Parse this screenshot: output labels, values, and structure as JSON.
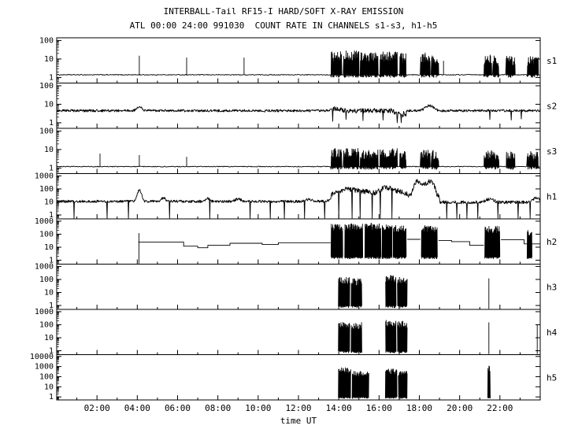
{
  "chart_data": {
    "type": "line",
    "title": "INTERBALL-Tail RF15-I HARD/SOFT X-RAY EMISSION",
    "subtitle": "ATL 00:00 24:00 991030  COUNT RATE IN CHANNELS s1-s3, h1-h5",
    "xlabel": "time UT",
    "x_range_hours": [
      0,
      24
    ],
    "x_major_ticks": [
      {
        "h": 2,
        "label": "02:00"
      },
      {
        "h": 4,
        "label": "04:00"
      },
      {
        "h": 6,
        "label": "06:00"
      },
      {
        "h": 8,
        "label": "08:00"
      },
      {
        "h": 10,
        "label": "10:00"
      },
      {
        "h": 12,
        "label": "12:00"
      },
      {
        "h": 14,
        "label": "14:00"
      },
      {
        "h": 16,
        "label": "16:00"
      },
      {
        "h": 18,
        "label": "18:00"
      },
      {
        "h": 20,
        "label": "20:00"
      },
      {
        "h": 22,
        "label": "22:00"
      }
    ],
    "panels": [
      {
        "id": "s1",
        "label": "s1",
        "kind": "burst",
        "ymin": 0.5,
        "ymax": 140,
        "yticks": [
          [
            100,
            "100"
          ],
          [
            10,
            "10"
          ],
          [
            1,
            "1"
          ]
        ],
        "baseline": 1.4,
        "baseline_noise": 0.05,
        "bursts": [
          [
            13.6,
            14.15,
            1.2,
            25
          ],
          [
            14.22,
            15.0,
            1.2,
            28
          ],
          [
            15.06,
            15.95,
            1.2,
            22
          ],
          [
            16.02,
            16.9,
            1.2,
            25
          ],
          [
            17.0,
            17.35,
            1.2,
            20
          ],
          [
            18.05,
            18.55,
            1.2,
            22
          ],
          [
            18.6,
            18.95,
            1.2,
            18
          ],
          [
            21.2,
            21.6,
            1.2,
            18
          ],
          [
            21.65,
            21.95,
            1.2,
            15
          ],
          [
            22.3,
            22.75,
            1.2,
            15
          ],
          [
            23.35,
            23.9,
            1.2,
            15
          ]
        ],
        "spikes": [
          [
            4.1,
            15
          ],
          [
            6.45,
            12
          ],
          [
            9.3,
            12
          ],
          [
            19.2,
            8
          ]
        ]
      },
      {
        "id": "s2",
        "label": "s2",
        "kind": "continuous",
        "ymin": 0.5,
        "ymax": 140,
        "yticks": [
          [
            100,
            "100"
          ],
          [
            10,
            "10"
          ],
          [
            1,
            "1"
          ]
        ],
        "base": 4.5,
        "noise": 0.1,
        "bumps": [
          [
            4.1,
            0.15,
            1.6
          ],
          [
            13.9,
            0.3,
            1.3
          ],
          [
            18.5,
            0.25,
            1.9
          ]
        ],
        "regions": [
          [
            13.6,
            17.35,
            1.0,
            2.0
          ],
          [
            16.75,
            17.35,
            0.65,
            2.5
          ]
        ],
        "drops": [
          [
            13.7,
            1.2
          ],
          [
            14.35,
            1.5
          ],
          [
            15.2,
            1.3
          ],
          [
            16.2,
            1.4
          ],
          [
            16.9,
            1.0
          ],
          [
            17.1,
            1.0
          ],
          [
            21.5,
            1.5
          ],
          [
            22.55,
            1.4
          ],
          [
            23.05,
            1.6
          ]
        ]
      },
      {
        "id": "s3",
        "label": "s3",
        "kind": "burst",
        "ymin": 0.5,
        "ymax": 140,
        "yticks": [
          [
            100,
            "100"
          ],
          [
            10,
            "10"
          ],
          [
            1,
            "1"
          ]
        ],
        "baseline": 1.2,
        "baseline_noise": 0.05,
        "bursts": [
          [
            13.6,
            14.15,
            1.0,
            12
          ],
          [
            14.22,
            15.0,
            1.0,
            12
          ],
          [
            15.06,
            15.95,
            1.0,
            10
          ],
          [
            16.02,
            16.9,
            1.0,
            12
          ],
          [
            17.0,
            17.35,
            1.0,
            10
          ],
          [
            18.05,
            18.55,
            1.0,
            10
          ],
          [
            18.6,
            18.95,
            1.0,
            9
          ],
          [
            21.2,
            21.95,
            1.0,
            9
          ],
          [
            22.3,
            22.75,
            1.0,
            8
          ],
          [
            23.35,
            23.9,
            1.0,
            8
          ]
        ],
        "spikes": [
          [
            2.15,
            6
          ],
          [
            4.1,
            5
          ],
          [
            6.45,
            4
          ]
        ]
      },
      {
        "id": "h1",
        "label": "h1",
        "kind": "continuous",
        "ymin": 0.5,
        "ymax": 1500,
        "yticks": [
          [
            1000,
            "1000"
          ],
          [
            100,
            "100"
          ],
          [
            10,
            "10"
          ],
          [
            1,
            "1"
          ]
        ],
        "base": 11,
        "noise": 0.15,
        "bumps": [
          [
            4.1,
            0.12,
            7
          ],
          [
            5.3,
            0.12,
            1.9
          ],
          [
            7.5,
            0.12,
            1.7
          ],
          [
            9.0,
            0.2,
            1.5
          ],
          [
            12.5,
            0.25,
            1.4
          ],
          [
            14.3,
            0.5,
            3.5
          ],
          [
            15.3,
            0.6,
            2.5
          ],
          [
            16.4,
            0.35,
            5
          ],
          [
            17.1,
            0.3,
            2.5
          ],
          [
            17.85,
            0.15,
            14
          ],
          [
            18.3,
            0.2,
            11
          ],
          [
            18.65,
            0.15,
            8
          ],
          [
            21.5,
            0.25,
            1.8
          ],
          [
            23.8,
            0.2,
            2.2
          ]
        ],
        "regions": [
          [
            13.6,
            19.0,
            2.2,
            2.0
          ],
          [
            19.0,
            24,
            0.85,
            1.2
          ]
        ],
        "drops": [
          [
            0.85,
            0.55
          ],
          [
            2.5,
            0.55
          ],
          [
            3.55,
            0.55
          ],
          [
            5.6,
            0.55
          ],
          [
            7.6,
            0.55
          ],
          [
            9.6,
            0.55
          ],
          [
            10.6,
            0.55
          ],
          [
            11.3,
            0.55
          ],
          [
            12.3,
            0.55
          ],
          [
            13.3,
            0.55
          ],
          [
            14.0,
            0.55
          ],
          [
            14.65,
            0.55
          ],
          [
            15.05,
            0.55
          ],
          [
            15.65,
            0.55
          ],
          [
            16.05,
            0.55
          ],
          [
            16.65,
            0.55
          ],
          [
            19.35,
            0.55
          ],
          [
            19.85,
            0.55
          ],
          [
            20.35,
            0.55
          ],
          [
            20.9,
            0.55
          ],
          [
            21.9,
            0.55
          ],
          [
            22.9,
            0.55
          ],
          [
            23.5,
            0.55
          ]
        ]
      },
      {
        "id": "h2",
        "label": "h2",
        "kind": "stair",
        "ymin": 0.5,
        "ymax": 1500,
        "yticks": [
          [
            1000,
            "1000"
          ],
          [
            100,
            "100"
          ],
          [
            10,
            "10"
          ],
          [
            1,
            "1"
          ]
        ],
        "steps": [
          [
            4.05,
            6.3,
            25
          ],
          [
            6.3,
            7.0,
            12
          ],
          [
            7.0,
            7.5,
            9
          ],
          [
            7.5,
            8.6,
            14
          ],
          [
            8.6,
            10.2,
            20
          ],
          [
            10.2,
            11.0,
            16
          ],
          [
            11.0,
            13.6,
            22
          ],
          [
            17.4,
            18.05,
            40
          ],
          [
            18.95,
            19.6,
            33
          ],
          [
            19.6,
            20.5,
            27
          ],
          [
            20.5,
            21.2,
            14
          ],
          [
            22.05,
            23.2,
            38
          ],
          [
            23.2,
            24,
            18
          ]
        ],
        "bursts": [
          [
            13.62,
            14.2,
            1.5,
            600
          ],
          [
            14.3,
            15.2,
            1.5,
            700
          ],
          [
            15.3,
            16.1,
            1.5,
            700
          ],
          [
            16.15,
            16.65,
            1.5,
            600
          ],
          [
            16.7,
            17.35,
            1.5,
            500
          ],
          [
            18.1,
            18.9,
            1.5,
            500
          ],
          [
            21.25,
            22.0,
            1.5,
            400
          ],
          [
            23.35,
            23.6,
            1.5,
            200
          ]
        ],
        "spikes": [
          [
            4.08,
            120
          ]
        ]
      },
      {
        "id": "h3",
        "label": "h3",
        "kind": "burst",
        "ymin": 0.5,
        "ymax": 1500,
        "yticks": [
          [
            1000,
            "1000"
          ],
          [
            100,
            "100"
          ],
          [
            10,
            "10"
          ],
          [
            1,
            "1"
          ]
        ],
        "baseline": null,
        "bursts": [
          [
            13.95,
            14.55,
            0.8,
            150
          ],
          [
            14.6,
            15.15,
            0.8,
            120
          ],
          [
            16.3,
            16.85,
            0.8,
            200
          ],
          [
            16.9,
            17.4,
            0.8,
            150
          ]
        ],
        "spikes": [
          [
            21.45,
            120
          ]
        ]
      },
      {
        "id": "h4",
        "label": "h4",
        "kind": "burst",
        "ymin": 0.5,
        "ymax": 1500,
        "yticks": [
          [
            1000,
            "1000"
          ],
          [
            100,
            "100"
          ],
          [
            10,
            "10"
          ],
          [
            1,
            "1"
          ]
        ],
        "baseline": null,
        "bursts": [
          [
            13.95,
            14.55,
            0.8,
            200
          ],
          [
            14.6,
            15.15,
            0.8,
            150
          ],
          [
            16.3,
            16.85,
            0.8,
            250
          ],
          [
            16.9,
            17.4,
            0.8,
            200
          ]
        ],
        "spikes": [
          [
            21.45,
            150
          ],
          [
            23.85,
            100
          ]
        ]
      },
      {
        "id": "h5",
        "label": "h5",
        "kind": "burst",
        "ymin": 0.5,
        "ymax": 15000,
        "yticks": [
          [
            10000,
            "10000"
          ],
          [
            1000,
            "1000"
          ],
          [
            100,
            "100"
          ],
          [
            10,
            "10"
          ],
          [
            1,
            "1"
          ]
        ],
        "baseline": null,
        "bursts": [
          [
            13.95,
            14.6,
            0.8,
            800
          ],
          [
            14.65,
            15.5,
            0.8,
            350
          ],
          [
            16.3,
            16.9,
            0.8,
            600
          ],
          [
            16.95,
            17.4,
            0.8,
            400
          ],
          [
            21.38,
            21.52,
            0.8,
            1200
          ]
        ],
        "spikes": []
      }
    ]
  }
}
